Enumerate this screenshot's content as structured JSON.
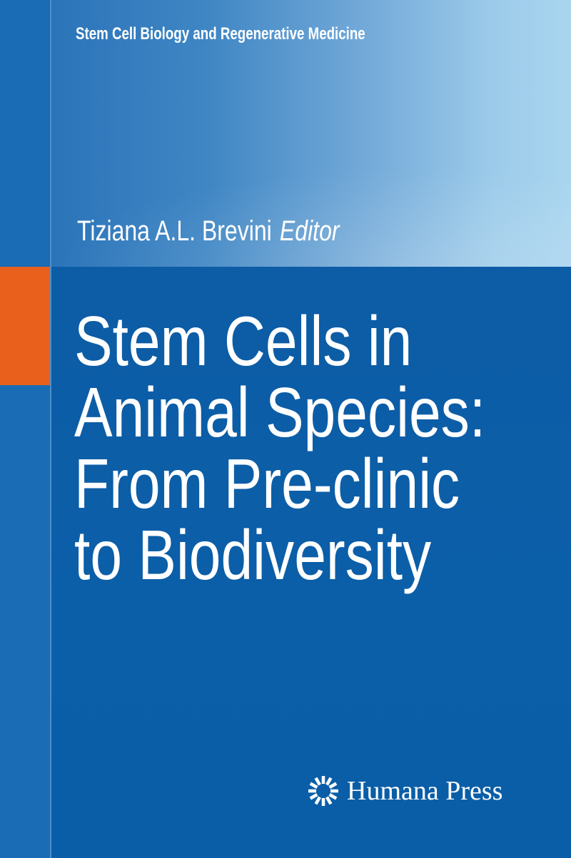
{
  "cover": {
    "series": "Stem Cell Biology and Regenerative Medicine",
    "author": "Tiziana A.L. Brevini",
    "role": "Editor",
    "title_lines": [
      "Stem Cells in",
      "Animal Species:",
      "From Pre-clinic",
      "to Biodiversity"
    ],
    "publisher": "Humana Press",
    "publisher_icon": "sunburst-logo-icon",
    "colors": {
      "accent": "#e8601c",
      "background": "#0b5ca6",
      "highlight": "#a9d5ef"
    }
  }
}
